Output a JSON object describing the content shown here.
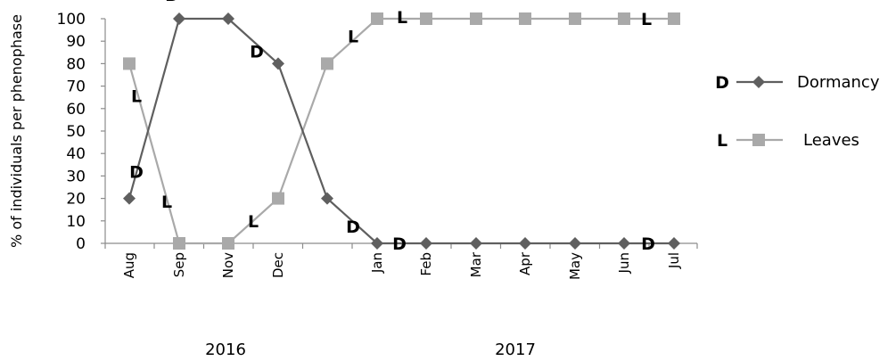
{
  "chart_data": {
    "type": "line",
    "title": "",
    "ylabel": "% of individuals per phenophase",
    "ylim": [
      0,
      100
    ],
    "yticks": [
      "0",
      "10",
      "20",
      "30",
      "40",
      "50",
      "60",
      "70",
      "80",
      "90",
      "100"
    ],
    "grid": false,
    "legend_position": "right",
    "x_tick_labels": [
      "Aug",
      "Sep",
      "Nov",
      "Dec",
      "",
      "Jan",
      "Feb",
      "Mar",
      "Apr",
      "May",
      "Jun",
      "Jul"
    ],
    "years": [
      {
        "label": "2016"
      },
      {
        "label": "2017"
      }
    ],
    "series": [
      {
        "name": "Dormancy",
        "code": "D",
        "marker": "diamond",
        "color": "#5f5f5f",
        "values": [
          20,
          100,
          100,
          80,
          20,
          0,
          0,
          0,
          0,
          0,
          0,
          0
        ],
        "point_labels": [
          "D",
          "D",
          "",
          "D",
          "",
          "D",
          "D",
          "",
          "",
          "",
          "D",
          ""
        ]
      },
      {
        "name": "Leaves",
        "code": "L",
        "marker": "square",
        "color": "#a9a9a9",
        "values": [
          80,
          0,
          0,
          20,
          80,
          100,
          100,
          100,
          100,
          100,
          100,
          100
        ],
        "point_labels": [
          "L",
          "L",
          "L",
          "",
          "L",
          "L",
          "",
          "",
          "",
          "",
          "L",
          ""
        ]
      }
    ]
  }
}
